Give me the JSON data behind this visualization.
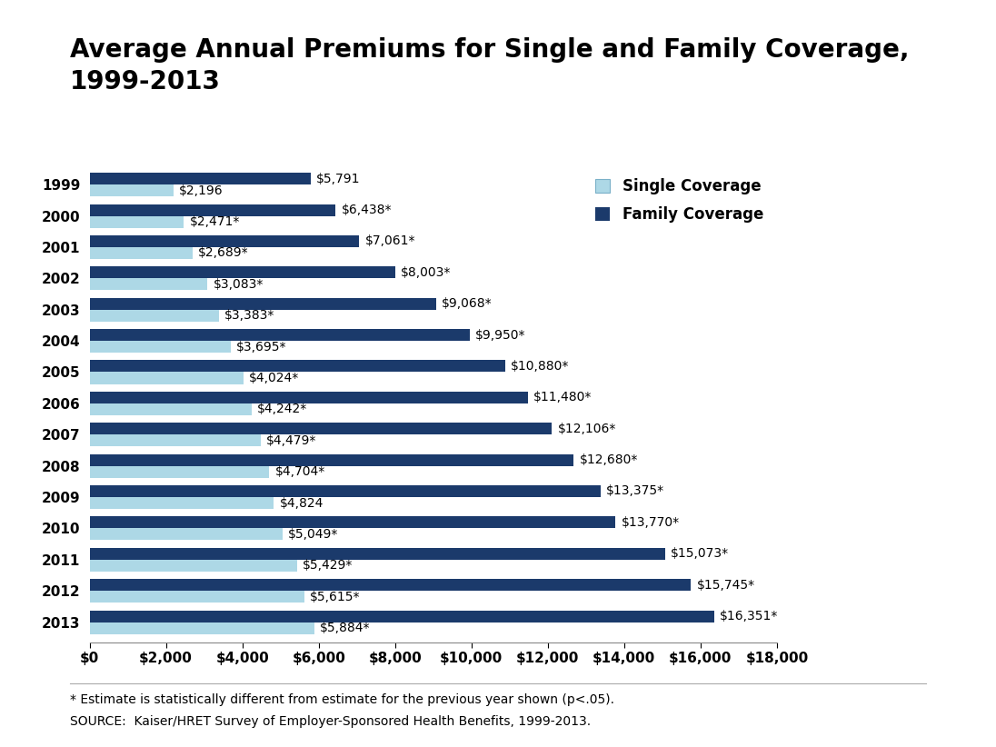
{
  "title": "Average Annual Premiums for Single and Family Coverage,\n1999-2013",
  "years": [
    1999,
    2000,
    2001,
    2002,
    2003,
    2004,
    2005,
    2006,
    2007,
    2008,
    2009,
    2010,
    2011,
    2012,
    2013
  ],
  "single": [
    2196,
    2471,
    2689,
    3083,
    3383,
    3695,
    4024,
    4242,
    4479,
    4704,
    4824,
    5049,
    5429,
    5615,
    5884
  ],
  "family": [
    5791,
    6438,
    7061,
    8003,
    9068,
    9950,
    10880,
    11480,
    12106,
    12680,
    13375,
    13770,
    15073,
    15745,
    16351
  ],
  "single_labels": [
    "$2,196",
    "$2,471*",
    "$2,689*",
    "$3,083*",
    "$3,383*",
    "$3,695*",
    "$4,024*",
    "$4,242*",
    "$4,479*",
    "$4,704*",
    "$4,824",
    "$5,049*",
    "$5,429*",
    "$5,615*",
    "$5,884*"
  ],
  "family_labels": [
    "$5,791",
    "$6,438*",
    "$7,061*",
    "$8,003*",
    "$9,068*",
    "$9,950*",
    "$10,880*",
    "$11,480*",
    "$12,106*",
    "$12,680*",
    "$13,375*",
    "$13,770*",
    "$15,073*",
    "$15,745*",
    "$16,351*"
  ],
  "single_color": "#add8e6",
  "family_color": "#1b3a6b",
  "xlim": [
    0,
    18000
  ],
  "xticks": [
    0,
    2000,
    4000,
    6000,
    8000,
    10000,
    12000,
    14000,
    16000,
    18000
  ],
  "footnote1": "* Estimate is statistically different from estimate for the previous year shown (p<.05).",
  "footnote2": "SOURCE:  Kaiser/HRET Survey of Employer-Sponsored Health Benefits, 1999-2013.",
  "legend_single": "Single Coverage",
  "legend_family": "Family Coverage",
  "background_color": "#ffffff",
  "bar_height": 0.38,
  "title_fontsize": 20,
  "label_fontsize": 10,
  "tick_fontsize": 11,
  "footnote_fontsize": 10
}
